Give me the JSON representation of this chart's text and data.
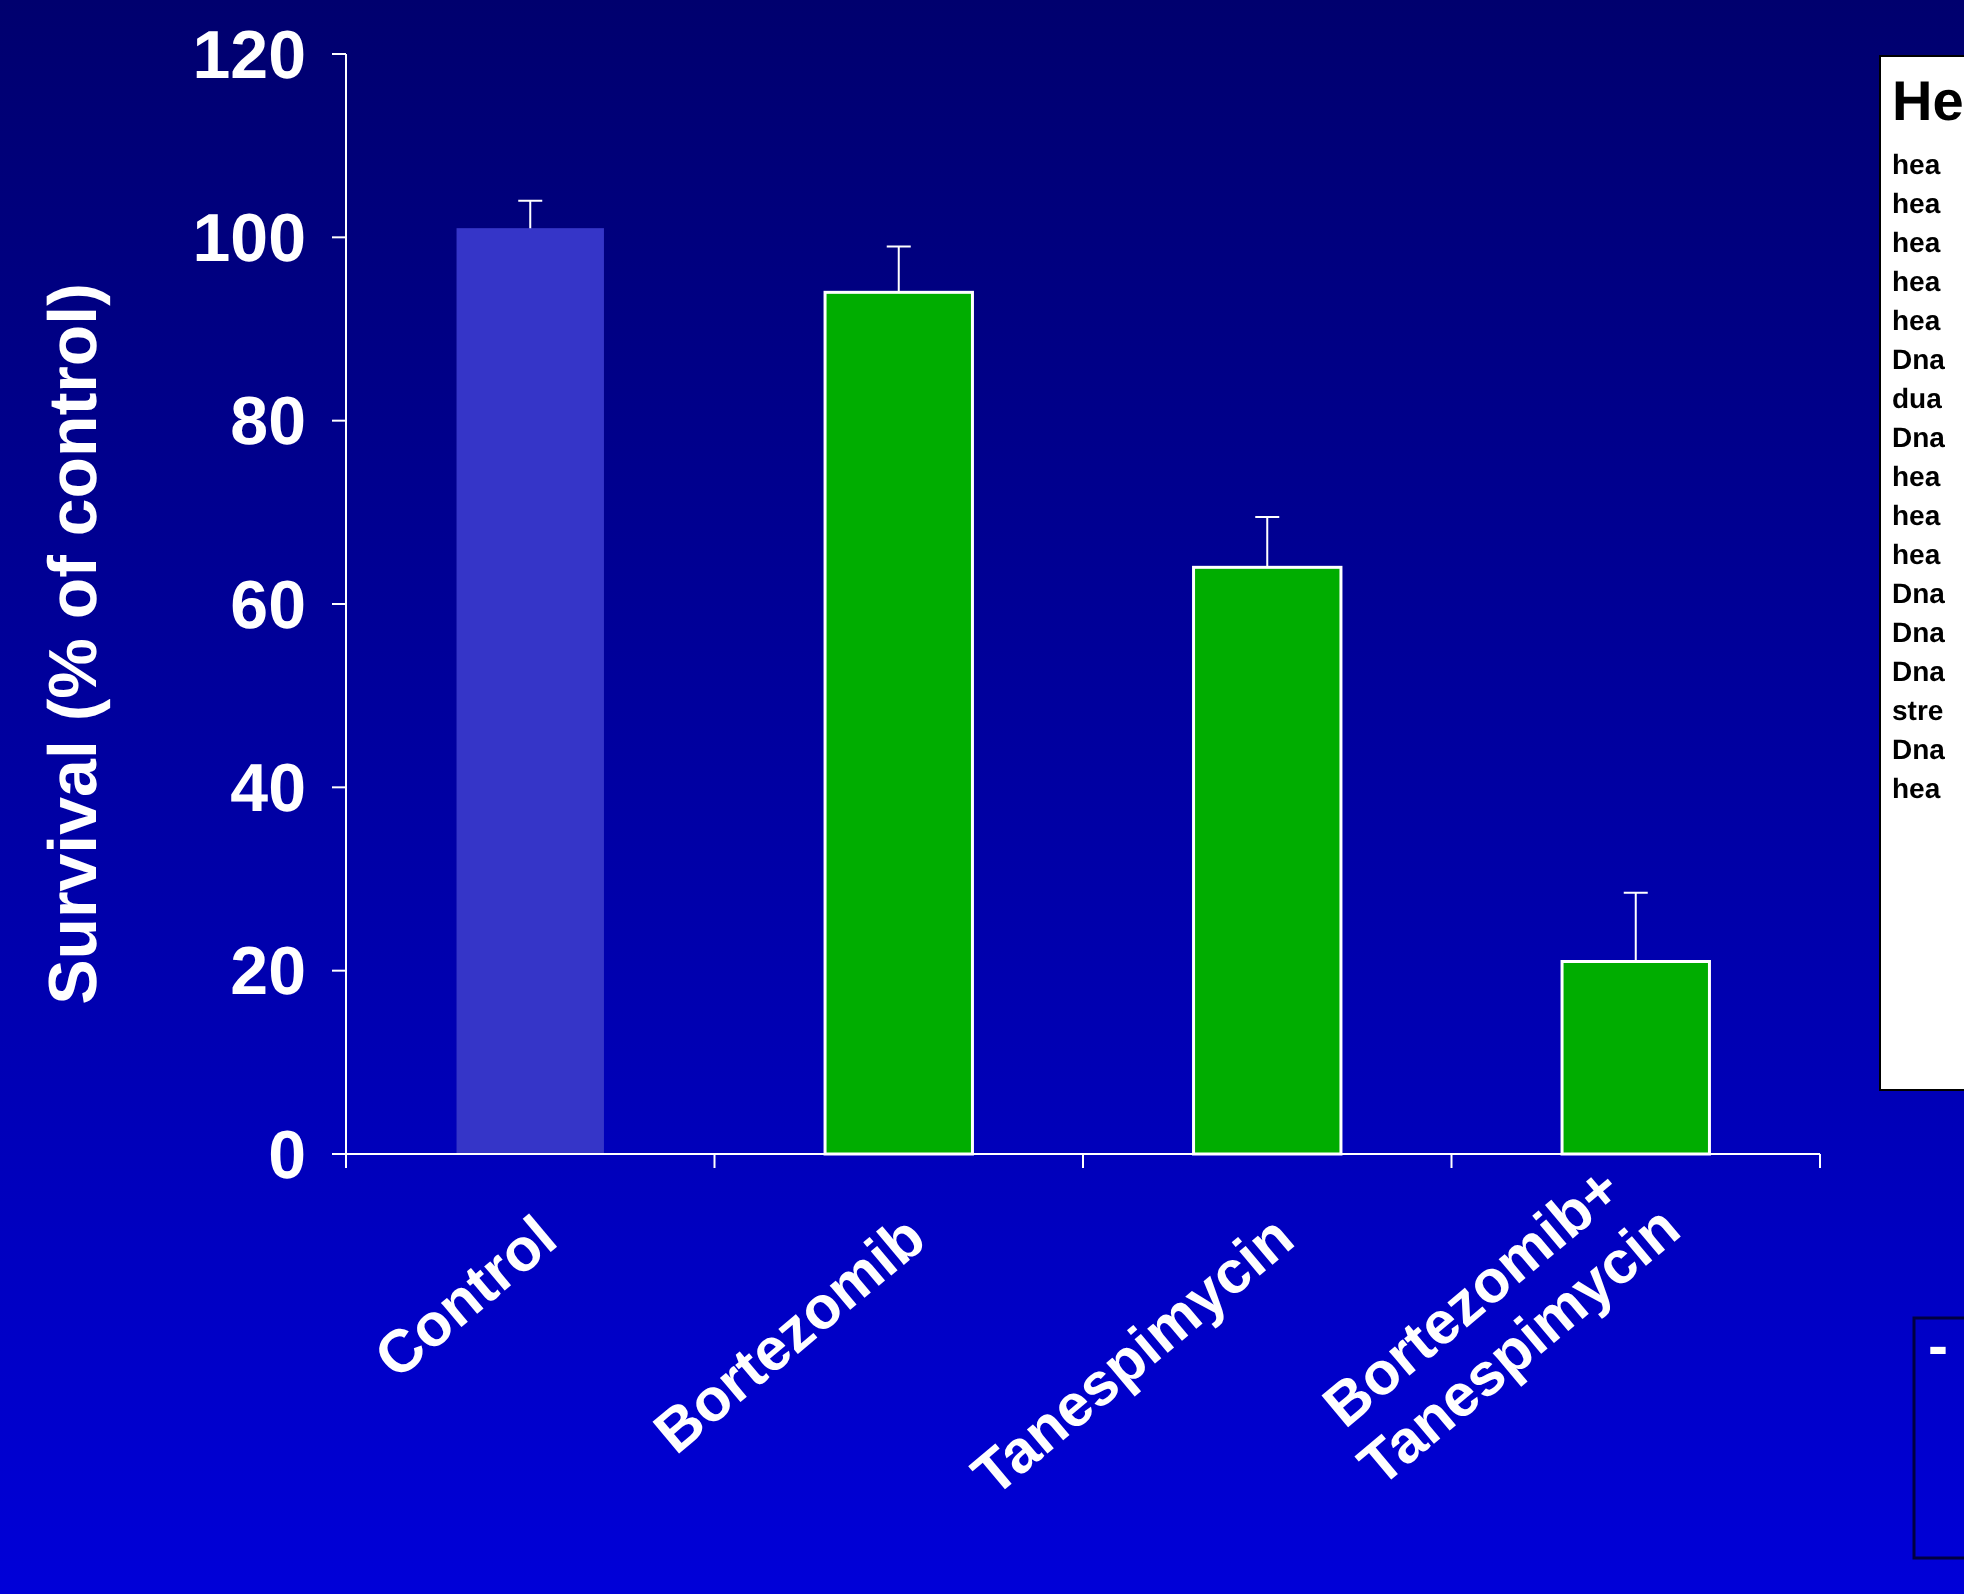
{
  "chart_data": {
    "type": "bar",
    "ylabel": "Survival (% of control)",
    "categories": [
      "Control",
      "Bortezomib",
      "Tanespimycin",
      "Bortezomib+ Tanespimycin"
    ],
    "values": [
      101,
      94,
      64,
      21
    ],
    "colors": [
      "#3535c8",
      "#00ad00",
      "#00ad00",
      "#00ad00"
    ],
    "errors": [
      [
        101,
        104
      ],
      [
        94,
        99
      ],
      [
        64,
        69.5
      ],
      [
        21,
        28.5
      ]
    ],
    "ylim": [
      0,
      120
    ],
    "yticks": [
      0,
      20,
      40,
      60,
      80,
      100,
      120
    ],
    "grid": false,
    "annotations": [
      "He",
      "hea",
      "hea",
      "hea",
      "hea",
      "hea",
      "Dna",
      "dua",
      "Dna",
      "hea",
      "hea",
      "hea",
      "Dna",
      "Dna",
      "Dna",
      "stre",
      "Dna",
      "hea",
      "-"
    ]
  }
}
